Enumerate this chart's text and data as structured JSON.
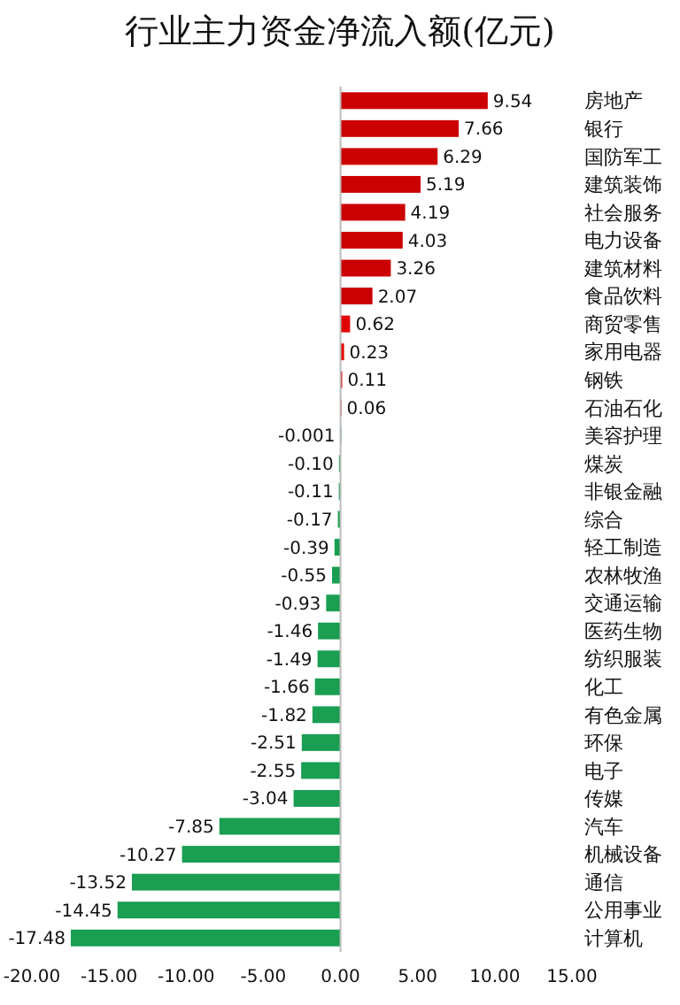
{
  "chart_data": {
    "type": "bar",
    "title": "行业主力资金净流入额(亿元)",
    "categories": [
      "房地产",
      "银行",
      "国防军工",
      "建筑装饰",
      "社会服务",
      "电力设备",
      "建筑材料",
      "食品饮料",
      "商贸零售",
      "家用电器",
      "钢铁",
      "石油石化",
      "美容护理",
      "煤炭",
      "非银金融",
      "综合",
      "轻工制造",
      "农林牧渔",
      "交通运输",
      "医药生物",
      "纺织服装",
      "化工",
      "有色金属",
      "环保",
      "电子",
      "传媒",
      "汽车",
      "机械设备",
      "通信",
      "公用事业",
      "计算机"
    ],
    "values": [
      9.54,
      7.66,
      6.29,
      5.19,
      4.19,
      4.03,
      3.26,
      2.07,
      0.62,
      0.23,
      0.11,
      0.06,
      -0.001,
      -0.1,
      -0.11,
      -0.17,
      -0.39,
      -0.55,
      -0.93,
      -1.46,
      -1.49,
      -1.66,
      -1.82,
      -2.51,
      -2.55,
      -3.04,
      -7.85,
      -10.27,
      -13.52,
      -14.45,
      -17.48
    ],
    "value_labels": [
      "9.54",
      "7.66",
      "6.29",
      "5.19",
      "4.19",
      "4.03",
      "3.26",
      "2.07",
      "0.62",
      "0.23",
      "0.11",
      "0.06",
      "-0.001",
      "-0.10",
      "-0.11",
      "-0.17",
      "-0.39",
      "-0.55",
      "-0.93",
      "-1.46",
      "-1.49",
      "-1.66",
      "-1.82",
      "-2.51",
      "-2.55",
      "-3.04",
      "-7.85",
      "-10.27",
      "-13.52",
      "-14.45",
      "-17.48"
    ],
    "colors": [
      "#cc0000",
      "#cc0000",
      "#cc0000",
      "#cc0000",
      "#cc0000",
      "#cc0000",
      "#cc0000",
      "#cc0000",
      "#e00000",
      "#e00000",
      "#e00000",
      "#e00000",
      "#1a9e52",
      "#1a9e52",
      "#1a9e52",
      "#1a9e52",
      "#1a9e52",
      "#1a9e52",
      "#1a9e52",
      "#1a9e52",
      "#1a9e52",
      "#1a9e52",
      "#1a9e52",
      "#1a9e52",
      "#1a9e52",
      "#1a9e52",
      "#1a9e52",
      "#1a9e52",
      "#1a9e52",
      "#1a9e52",
      "#1a9e52"
    ],
    "xlim": [
      -20,
      15
    ],
    "xticks": [
      {
        "value": -20,
        "label": "-20.00"
      },
      {
        "value": -15,
        "label": "-15.00"
      },
      {
        "value": -10,
        "label": "-10.00"
      },
      {
        "value": -5,
        "label": "-5.00"
      },
      {
        "value": 0,
        "label": "0.00"
      },
      {
        "value": 5,
        "label": "5.00"
      },
      {
        "value": 10,
        "label": "10.00"
      },
      {
        "value": 15,
        "label": "15.00"
      }
    ],
    "orientation": "horizontal"
  }
}
